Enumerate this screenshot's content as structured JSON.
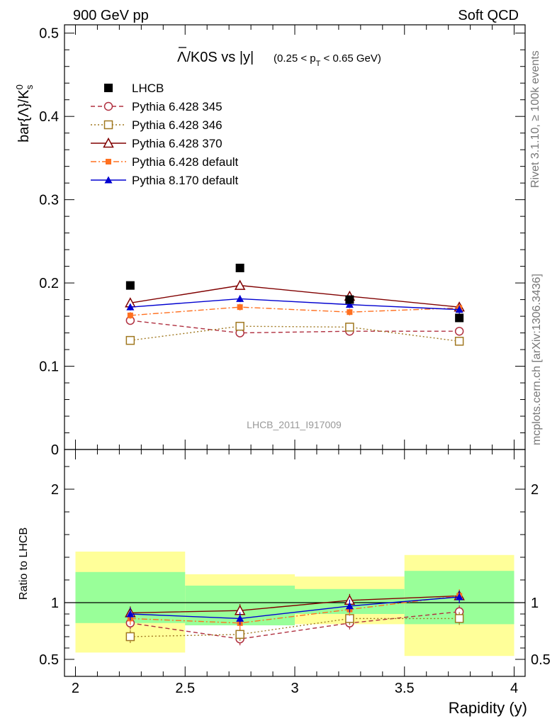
{
  "header": {
    "left": "900 GeV pp",
    "right": "Soft QCD"
  },
  "side_labels": {
    "rivet": "Rivet 3.1.10, ≥ 100k events",
    "source": "mcplots.cern.ch [arXiv:1306.3436]"
  },
  "chart_data": [
    {
      "type": "scatter",
      "title_main": "Λ/K0S vs |y|",
      "title_sub": "(0.25 < p",
      "title_sub_idx": "T",
      "title_sub_end": " < 0.65 GeV)",
      "ylabel": "bar{Λ}/K",
      "ylabel_sup": "0",
      "ylabel_sub": "s",
      "watermark": "LHCB_2011_I917009",
      "ylim": [
        0,
        0.5
      ],
      "y_ticks": [
        "0",
        "0.1",
        "0.2",
        "0.3",
        "0.4",
        "0.5"
      ],
      "x": [
        2.25,
        2.75,
        3.25,
        3.75
      ],
      "data": {
        "name": "LHCB",
        "values": [
          0.197,
          0.218,
          0.18,
          0.158
        ]
      },
      "series": [
        {
          "name": "Pythia 6.428 345",
          "color": "#b03040",
          "marker": "circle-open",
          "dash": "6,4",
          "values": [
            0.155,
            0.14,
            0.142,
            0.142
          ],
          "errors": [
            0.004,
            0.004,
            0.004,
            0.004
          ]
        },
        {
          "name": "Pythia 6.428 346",
          "color": "#a07820",
          "marker": "square-open",
          "dash": "2,3",
          "values": [
            0.131,
            0.148,
            0.147,
            0.13
          ],
          "errors": [
            0.003,
            0.004,
            0.004,
            0.005
          ]
        },
        {
          "name": "Pythia 6.428 370",
          "color": "#800000",
          "marker": "triangle-open",
          "dash": "",
          "values": [
            0.176,
            0.197,
            0.184,
            0.171
          ],
          "errors": [
            0.004,
            0.005,
            0.005,
            0.005
          ]
        },
        {
          "name": "Pythia 6.428 default",
          "color": "#ff7020",
          "marker": "square-filled",
          "dash": "8,3,2,3",
          "values": [
            0.161,
            0.171,
            0.165,
            0.17
          ],
          "errors": [
            0.004,
            0.004,
            0.004,
            0.005
          ]
        },
        {
          "name": "Pythia 8.170 default",
          "color": "#0000d0",
          "marker": "triangle-filled",
          "dash": "",
          "values": [
            0.171,
            0.181,
            0.174,
            0.168
          ],
          "errors": [
            0.004,
            0.004,
            0.004,
            0.005
          ]
        }
      ]
    },
    {
      "type": "scatter",
      "ylabel": "Ratio to LHCB",
      "xlabel": "Rapidity (y)",
      "ylim": [
        0.35,
        2.35
      ],
      "y_ticks": [
        "0.5",
        "1",
        "2"
      ],
      "x_ticks": [
        "2",
        "2.5",
        "3",
        "3.5",
        "4"
      ],
      "xlim": [
        2,
        4
      ],
      "bands": [
        {
          "xlo": 2.0,
          "xhi": 2.5,
          "inner": [
            0.82,
            1.27
          ],
          "outer": [
            0.56,
            1.45
          ]
        },
        {
          "xlo": 2.5,
          "xhi": 3.0,
          "inner": [
            0.8,
            1.15
          ],
          "outer": [
            0.8,
            1.25
          ]
        },
        {
          "xlo": 3.0,
          "xhi": 3.5,
          "inner": [
            0.9,
            1.12
          ],
          "outer": [
            0.81,
            1.23
          ]
        },
        {
          "xlo": 3.5,
          "xhi": 4.0,
          "inner": [
            0.81,
            1.28
          ],
          "outer": [
            0.53,
            1.42
          ]
        }
      ],
      "x": [
        2.25,
        2.75,
        3.25,
        3.75
      ],
      "series": [
        {
          "name": "Pythia 6.428 345",
          "values": [
            0.82,
            0.68,
            0.82,
            0.92
          ]
        },
        {
          "name": "Pythia 6.428 346",
          "values": [
            0.7,
            0.72,
            0.86,
            0.86
          ]
        },
        {
          "name": "Pythia 6.428 370",
          "values": [
            0.91,
            0.93,
            1.02,
            1.06
          ]
        },
        {
          "name": "Pythia 6.428 default",
          "values": [
            0.86,
            0.82,
            0.94,
            1.06
          ]
        },
        {
          "name": "Pythia 8.170 default",
          "values": [
            0.9,
            0.86,
            0.97,
            1.05
          ]
        }
      ]
    }
  ]
}
